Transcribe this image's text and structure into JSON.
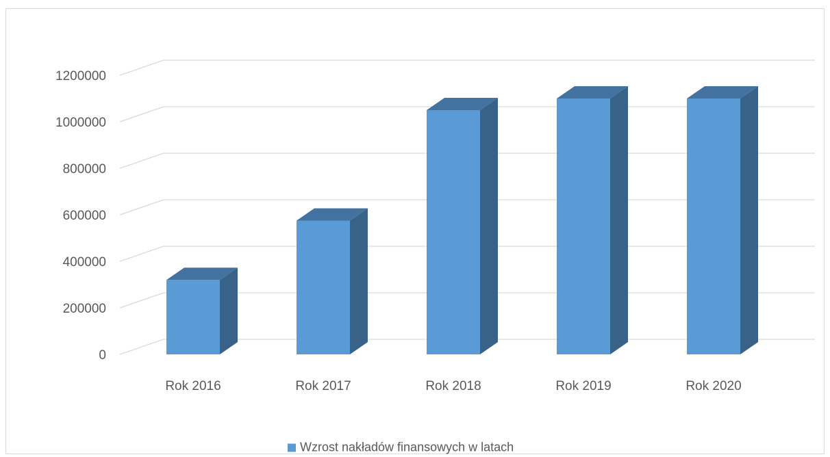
{
  "chart_data": {
    "type": "bar",
    "style": "3d-column",
    "categories": [
      "Rok 2016",
      "Rok 2017",
      "Rok 2018",
      "Rok 2019",
      "Rok 2020"
    ],
    "series": [
      {
        "name": "Wzrost nakładów finansowych w latach",
        "values": [
          320000,
          575000,
          1050000,
          1100000,
          1100000
        ]
      }
    ],
    "y_ticks": [
      "0",
      "200000",
      "400000",
      "600000",
      "800000",
      "1000000",
      "1200000"
    ],
    "ylim": [
      0,
      1200000
    ],
    "grid": true,
    "legend_position": "bottom",
    "colors": {
      "front": "#5b9bd5",
      "side": "#386288",
      "top": "#4472a0",
      "grid": "#d9d9d9"
    }
  }
}
